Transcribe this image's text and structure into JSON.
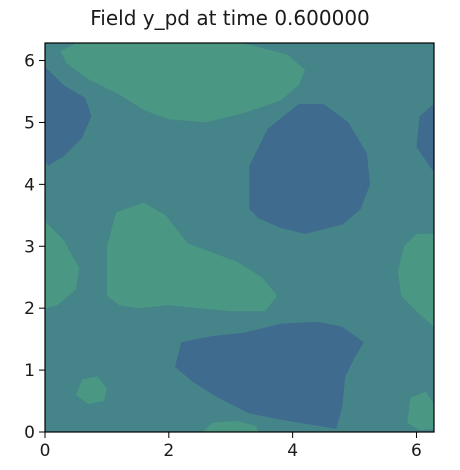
{
  "chart_data": {
    "type": "heatmap",
    "title": "Field y_pd at time 0.600000",
    "xlabel": "",
    "ylabel": "",
    "xlim": [
      0,
      6.2832
    ],
    "ylim": [
      0,
      6.2832
    ],
    "xticks": [
      0,
      2,
      4,
      6
    ],
    "yticks": [
      0,
      1,
      2,
      3,
      4,
      5,
      6
    ],
    "grid": false,
    "legend": "none",
    "colors": {
      "background": "#458489",
      "low": "#3f6b8f",
      "high": "#4a9883",
      "frame": "#000000"
    },
    "regions": [
      {
        "level": "high",
        "shape": "polygon",
        "points": [
          [
            0.25,
            6.15
          ],
          [
            0.5,
            6.28
          ],
          [
            3.2,
            6.28
          ],
          [
            3.9,
            6.1
          ],
          [
            4.2,
            5.85
          ],
          [
            4.1,
            5.6
          ],
          [
            3.8,
            5.35
          ],
          [
            3.2,
            5.15
          ],
          [
            2.6,
            5.0
          ],
          [
            2.0,
            5.05
          ],
          [
            1.6,
            5.2
          ],
          [
            1.2,
            5.45
          ],
          [
            0.7,
            5.7
          ],
          [
            0.35,
            5.95
          ]
        ]
      },
      {
        "level": "low",
        "shape": "polygon",
        "points": [
          [
            0,
            5.9
          ],
          [
            0.3,
            5.6
          ],
          [
            0.65,
            5.4
          ],
          [
            0.75,
            5.1
          ],
          [
            0.6,
            4.75
          ],
          [
            0.3,
            4.45
          ],
          [
            0.05,
            4.3
          ],
          [
            0,
            4.4
          ]
        ]
      },
      {
        "level": "low",
        "shape": "polygon",
        "points": [
          [
            3.3,
            3.6
          ],
          [
            3.3,
            4.3
          ],
          [
            3.6,
            4.9
          ],
          [
            4.1,
            5.3
          ],
          [
            4.5,
            5.3
          ],
          [
            4.9,
            5.0
          ],
          [
            5.2,
            4.5
          ],
          [
            5.25,
            4.0
          ],
          [
            5.1,
            3.6
          ],
          [
            4.8,
            3.35
          ],
          [
            4.2,
            3.2
          ],
          [
            3.8,
            3.3
          ],
          [
            3.45,
            3.45
          ]
        ]
      },
      {
        "level": "low",
        "shape": "polygon",
        "points": [
          [
            6.28,
            5.3
          ],
          [
            6.05,
            5.1
          ],
          [
            6.0,
            4.6
          ],
          [
            6.28,
            4.2
          ]
        ]
      },
      {
        "level": "high",
        "shape": "polygon",
        "points": [
          [
            1.0,
            2.2
          ],
          [
            1.0,
            3.0
          ],
          [
            1.15,
            3.55
          ],
          [
            1.6,
            3.7
          ],
          [
            1.95,
            3.5
          ],
          [
            2.3,
            3.05
          ],
          [
            2.7,
            2.9
          ],
          [
            3.1,
            2.75
          ],
          [
            3.5,
            2.5
          ],
          [
            3.75,
            2.2
          ],
          [
            3.55,
            1.95
          ],
          [
            3.0,
            1.95
          ],
          [
            2.5,
            2.0
          ],
          [
            2.0,
            2.05
          ],
          [
            1.5,
            2.0
          ],
          [
            1.2,
            2.05
          ]
        ]
      },
      {
        "level": "high",
        "shape": "polygon",
        "points": [
          [
            0,
            2.0
          ],
          [
            0,
            3.4
          ],
          [
            0.3,
            3.1
          ],
          [
            0.55,
            2.65
          ],
          [
            0.5,
            2.3
          ],
          [
            0.2,
            2.05
          ]
        ]
      },
      {
        "level": "high",
        "shape": "polygon",
        "points": [
          [
            6.28,
            1.7
          ],
          [
            6.28,
            3.2
          ],
          [
            6.0,
            3.2
          ],
          [
            5.8,
            3.0
          ],
          [
            5.7,
            2.6
          ],
          [
            5.75,
            2.2
          ],
          [
            6.0,
            1.95
          ]
        ]
      },
      {
        "level": "low",
        "shape": "polygon",
        "points": [
          [
            2.1,
            1.05
          ],
          [
            2.2,
            1.45
          ],
          [
            2.7,
            1.55
          ],
          [
            3.2,
            1.6
          ],
          [
            3.8,
            1.75
          ],
          [
            4.4,
            1.78
          ],
          [
            4.8,
            1.7
          ],
          [
            5.15,
            1.45
          ],
          [
            5.0,
            1.2
          ],
          [
            4.85,
            0.9
          ],
          [
            4.8,
            0.4
          ],
          [
            4.7,
            0.05
          ],
          [
            4.3,
            0.12
          ],
          [
            3.8,
            0.2
          ],
          [
            3.3,
            0.3
          ],
          [
            2.8,
            0.55
          ],
          [
            2.4,
            0.8
          ]
        ]
      },
      {
        "level": "high",
        "shape": "polygon",
        "points": [
          [
            0.5,
            0.6
          ],
          [
            0.6,
            0.85
          ],
          [
            0.85,
            0.9
          ],
          [
            1.0,
            0.7
          ],
          [
            0.95,
            0.5
          ],
          [
            0.7,
            0.45
          ]
        ]
      },
      {
        "level": "high",
        "shape": "polygon",
        "points": [
          [
            2.55,
            0
          ],
          [
            2.7,
            0.15
          ],
          [
            3.1,
            0.18
          ],
          [
            3.4,
            0.1
          ],
          [
            3.45,
            0
          ]
        ]
      },
      {
        "level": "high",
        "shape": "polygon",
        "points": [
          [
            5.85,
            0.15
          ],
          [
            5.9,
            0.55
          ],
          [
            6.15,
            0.65
          ],
          [
            6.28,
            0.45
          ],
          [
            6.28,
            0.05
          ],
          [
            6.05,
            0.03
          ]
        ]
      }
    ]
  }
}
